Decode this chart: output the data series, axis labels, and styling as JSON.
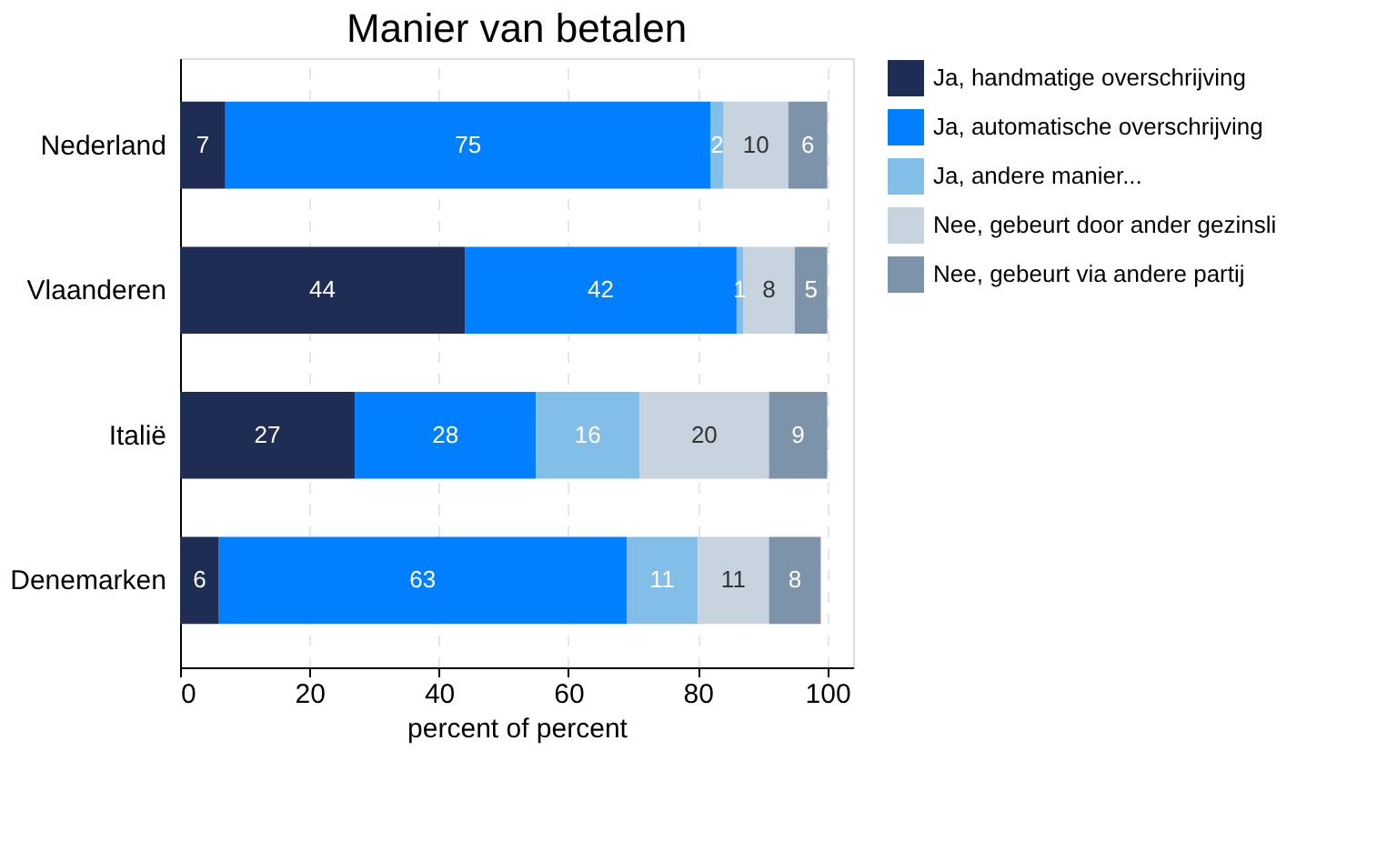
{
  "chart_data": {
    "type": "bar",
    "orientation": "horizontal",
    "stacked": true,
    "title": "Manier van betalen",
    "xlabel": "percent of percent",
    "categories": [
      "Nederland",
      "Vlaanderen",
      "Italië",
      "Denemarken"
    ],
    "series": [
      {
        "name": "Ja, handmatige overschrijving",
        "color": "#1f2d55",
        "values": [
          7,
          44,
          27,
          6
        ]
      },
      {
        "name": "Ja, automatische overschrijving",
        "color": "#0080ff",
        "values": [
          75,
          42,
          28,
          63
        ]
      },
      {
        "name": "Ja, andere manier...",
        "color": "#82bee8",
        "values": [
          2,
          1,
          16,
          11
        ]
      },
      {
        "name": "Nee, gebeurt door ander gezinsli",
        "color": "#c7d3de",
        "values": [
          10,
          8,
          20,
          11
        ]
      },
      {
        "name": "Nee, gebeurt via andere partij",
        "color": "#7d93a9",
        "values": [
          6,
          5,
          9,
          8
        ]
      }
    ],
    "xlim": [
      0,
      104
    ],
    "xticks": [
      0,
      20,
      40,
      60,
      80,
      100
    ],
    "grid": "x",
    "legend": "right",
    "data_labels": true
  }
}
